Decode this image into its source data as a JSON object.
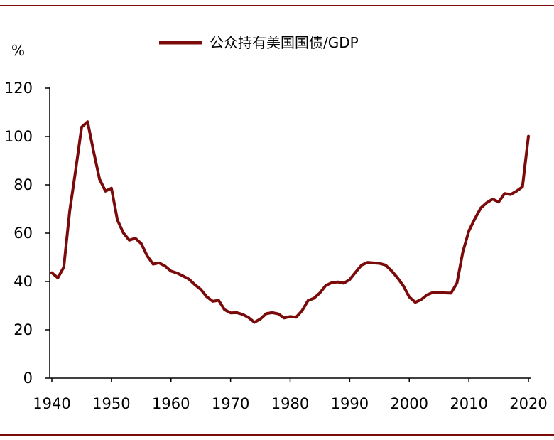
{
  "chart_data": {
    "type": "line",
    "title": "",
    "xlabel": "",
    "ylabel": "%",
    "xlim": [
      1940,
      2020
    ],
    "ylim": [
      0,
      120
    ],
    "yticks": [
      "0",
      "20",
      "40",
      "60",
      "80",
      "100",
      "120"
    ],
    "xticks": [
      "1940",
      "1950",
      "1960",
      "1970",
      "1980",
      "1990",
      "2000",
      "2010",
      "2020"
    ],
    "grid": false,
    "legend_position": "top-center",
    "colors": {
      "series": "#7B0A0A",
      "frame": "#7B0A0A",
      "axis": "#000000"
    },
    "series": [
      {
        "name": "公众持有美国国债/GDP",
        "x": [
          1940,
          1941,
          1942,
          1943,
          1944,
          1945,
          1946,
          1947,
          1948,
          1949,
          1950,
          1951,
          1952,
          1953,
          1954,
          1955,
          1956,
          1957,
          1958,
          1959,
          1960,
          1961,
          1962,
          1963,
          1964,
          1965,
          1966,
          1967,
          1968,
          1969,
          1970,
          1971,
          1972,
          1973,
          1974,
          1975,
          1976,
          1977,
          1978,
          1979,
          1980,
          1981,
          1982,
          1983,
          1984,
          1985,
          1986,
          1987,
          1988,
          1989,
          1990,
          1991,
          1992,
          1993,
          1994,
          1995,
          1996,
          1997,
          1998,
          1999,
          2000,
          2001,
          2002,
          2003,
          2004,
          2005,
          2006,
          2007,
          2008,
          2009,
          2010,
          2011,
          2012,
          2013,
          2014,
          2015,
          2016,
          2017,
          2018,
          2019,
          2020
        ],
        "values": [
          43.6,
          41.5,
          45.9,
          69.2,
          86.1,
          103.9,
          106.1,
          93.9,
          82.4,
          77.4,
          78.6,
          65.5,
          60.1,
          57.1,
          57.9,
          55.7,
          50.6,
          47.2,
          47.7,
          46.4,
          44.3,
          43.5,
          42.3,
          41.0,
          38.7,
          36.7,
          33.7,
          31.8,
          32.2,
          28.3,
          27.0,
          27.1,
          26.4,
          25.1,
          23.1,
          24.5,
          26.7,
          27.1,
          26.6,
          24.9,
          25.5,
          25.2,
          27.9,
          32.1,
          33.1,
          35.3,
          38.4,
          39.5,
          39.8,
          39.3,
          40.8,
          43.9,
          46.8,
          47.9,
          47.7,
          47.5,
          46.8,
          44.5,
          41.6,
          38.2,
          33.6,
          31.4,
          32.5,
          34.5,
          35.5,
          35.6,
          35.3,
          35.2,
          39.3,
          52.3,
          60.9,
          65.9,
          70.4,
          72.6,
          74.1,
          72.9,
          76.4,
          76.0,
          77.4,
          79.2,
          100.1
        ]
      }
    ]
  }
}
